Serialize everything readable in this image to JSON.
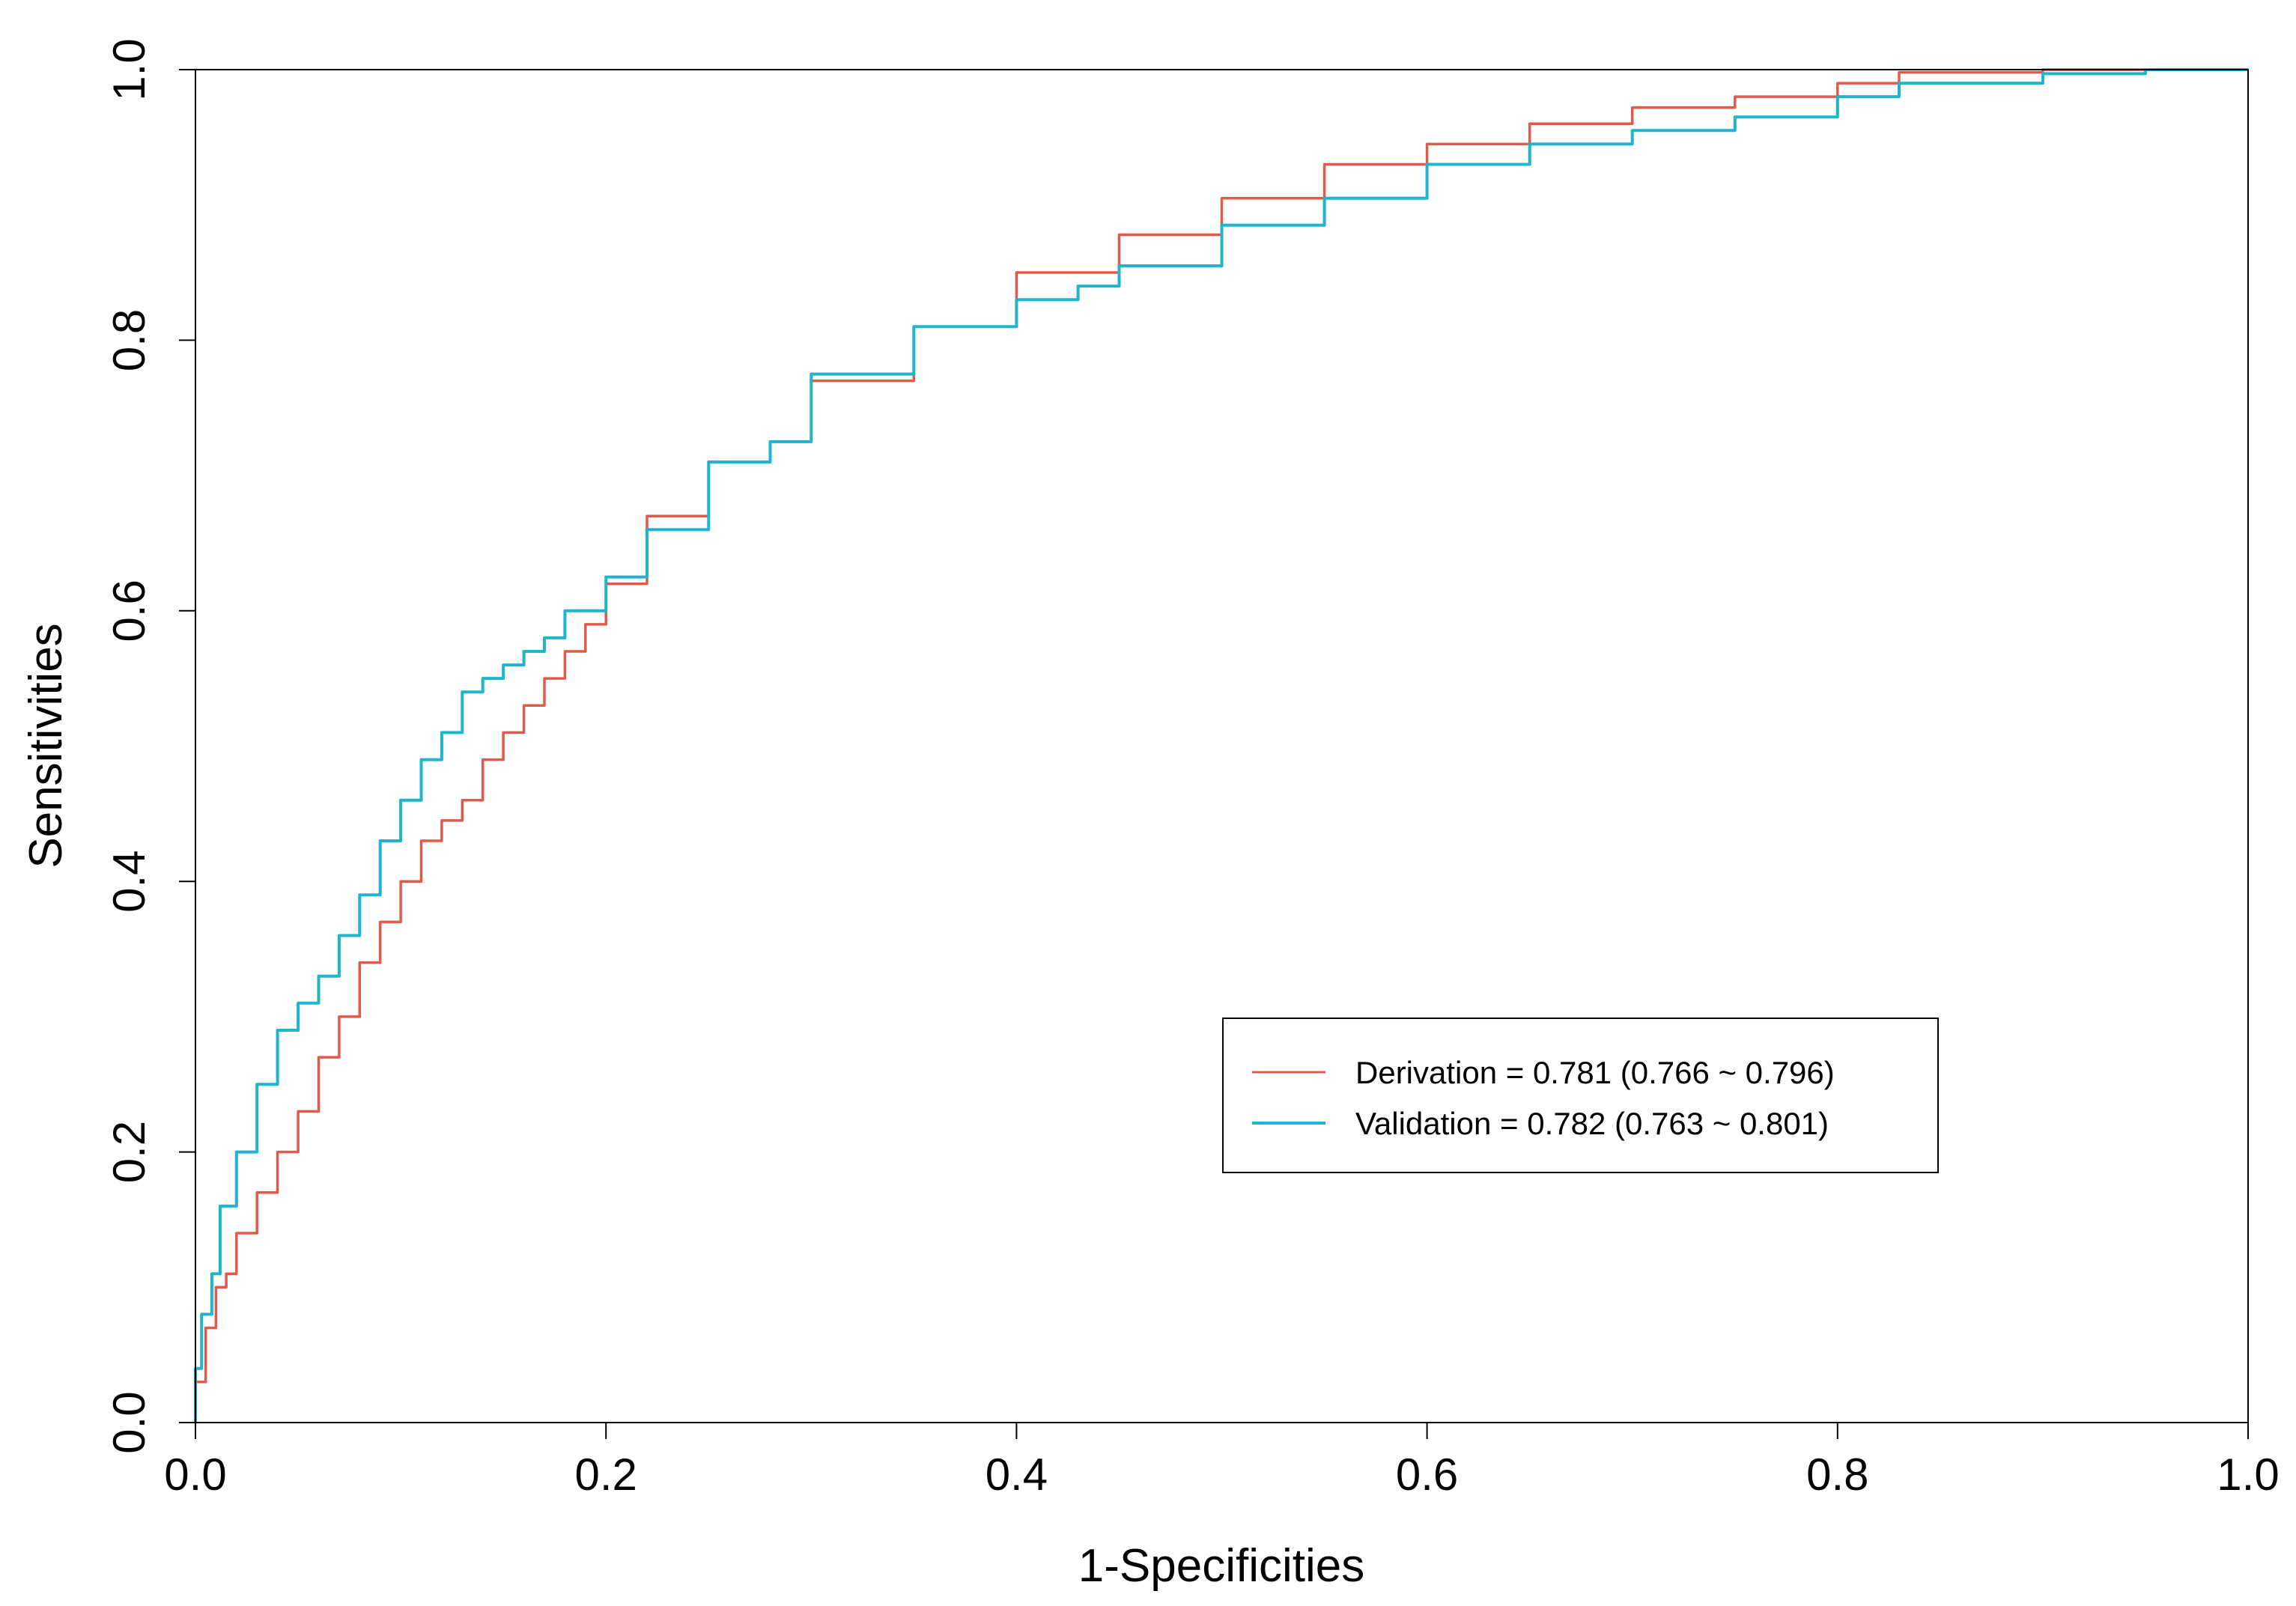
{
  "chart_data": {
    "type": "line",
    "title": "",
    "xlabel": "1-Specificities",
    "ylabel": "Sensitivities",
    "xlim": [
      0,
      1
    ],
    "ylim": [
      0,
      1
    ],
    "x_ticks": [
      "0.0",
      "0.2",
      "0.4",
      "0.6",
      "0.8",
      "1.0"
    ],
    "y_ticks": [
      "0.0",
      "0.2",
      "0.4",
      "0.6",
      "0.8",
      "1.0"
    ],
    "grid": false,
    "legend_position": "bottom-right",
    "series": [
      {
        "name": "Derivation = 0.781 (0.766 ~ 0.796)",
        "color": "#E05A4B",
        "points": [
          [
            0.0,
            0.0
          ],
          [
            0.005,
            0.03
          ],
          [
            0.01,
            0.07
          ],
          [
            0.015,
            0.1
          ],
          [
            0.02,
            0.11
          ],
          [
            0.03,
            0.14
          ],
          [
            0.04,
            0.17
          ],
          [
            0.05,
            0.2
          ],
          [
            0.06,
            0.23
          ],
          [
            0.07,
            0.27
          ],
          [
            0.08,
            0.3
          ],
          [
            0.09,
            0.34
          ],
          [
            0.1,
            0.37
          ],
          [
            0.11,
            0.4
          ],
          [
            0.12,
            0.43
          ],
          [
            0.13,
            0.445
          ],
          [
            0.14,
            0.46
          ],
          [
            0.15,
            0.49
          ],
          [
            0.16,
            0.51
          ],
          [
            0.17,
            0.53
          ],
          [
            0.18,
            0.55
          ],
          [
            0.19,
            0.57
          ],
          [
            0.2,
            0.59
          ],
          [
            0.22,
            0.62
          ],
          [
            0.25,
            0.67
          ],
          [
            0.28,
            0.71
          ],
          [
            0.3,
            0.725
          ],
          [
            0.35,
            0.77
          ],
          [
            0.4,
            0.81
          ],
          [
            0.45,
            0.85
          ],
          [
            0.5,
            0.878
          ],
          [
            0.55,
            0.905
          ],
          [
            0.6,
            0.93
          ],
          [
            0.65,
            0.945
          ],
          [
            0.7,
            0.96
          ],
          [
            0.75,
            0.972
          ],
          [
            0.8,
            0.98
          ],
          [
            0.83,
            0.99
          ],
          [
            0.9,
            0.998
          ],
          [
            0.95,
            1.0
          ],
          [
            1.0,
            1.0
          ]
        ]
      },
      {
        "name": "Validation = 0.782 (0.763 ~ 0.801)",
        "color": "#1FB5CC",
        "points": [
          [
            0.0,
            0.0
          ],
          [
            0.003,
            0.04
          ],
          [
            0.008,
            0.08
          ],
          [
            0.012,
            0.11
          ],
          [
            0.02,
            0.16
          ],
          [
            0.03,
            0.2
          ],
          [
            0.04,
            0.25
          ],
          [
            0.05,
            0.29
          ],
          [
            0.06,
            0.31
          ],
          [
            0.07,
            0.33
          ],
          [
            0.08,
            0.36
          ],
          [
            0.09,
            0.39
          ],
          [
            0.1,
            0.43
          ],
          [
            0.11,
            0.46
          ],
          [
            0.12,
            0.49
          ],
          [
            0.13,
            0.51
          ],
          [
            0.14,
            0.54
          ],
          [
            0.15,
            0.55
          ],
          [
            0.16,
            0.56
          ],
          [
            0.17,
            0.57
          ],
          [
            0.18,
            0.58
          ],
          [
            0.2,
            0.6
          ],
          [
            0.22,
            0.625
          ],
          [
            0.25,
            0.66
          ],
          [
            0.28,
            0.71
          ],
          [
            0.3,
            0.725
          ],
          [
            0.35,
            0.775
          ],
          [
            0.4,
            0.81
          ],
          [
            0.43,
            0.83
          ],
          [
            0.45,
            0.84
          ],
          [
            0.5,
            0.855
          ],
          [
            0.55,
            0.885
          ],
          [
            0.6,
            0.905
          ],
          [
            0.65,
            0.93
          ],
          [
            0.7,
            0.945
          ],
          [
            0.75,
            0.955
          ],
          [
            0.8,
            0.965
          ],
          [
            0.83,
            0.98
          ],
          [
            0.9,
            0.99
          ],
          [
            0.95,
            0.997
          ],
          [
            1.0,
            1.0
          ]
        ]
      }
    ]
  }
}
